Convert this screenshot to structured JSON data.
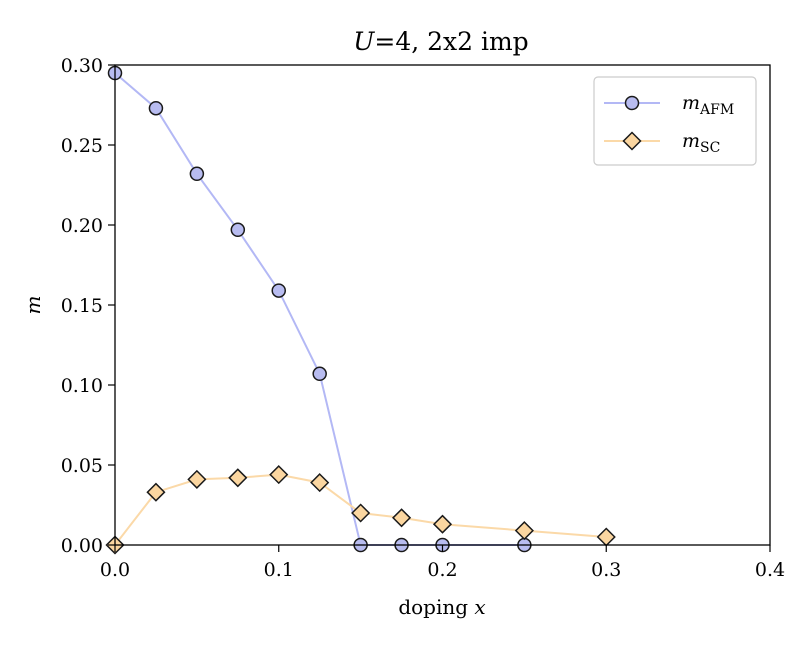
{
  "chart_data": {
    "type": "line",
    "title": {
      "var": "U",
      "rest": "=4, 2x2 imp"
    },
    "xlabel": {
      "text": "doping ",
      "var": "x"
    },
    "ylabel": "m",
    "xlim": [
      0.0,
      0.4
    ],
    "ylim": [
      0.0,
      0.3
    ],
    "x_ticks": [
      0.0,
      0.1,
      0.2,
      0.3,
      0.4
    ],
    "x_tick_labels": [
      "0.0",
      "0.1",
      "0.2",
      "0.3",
      "0.4"
    ],
    "y_ticks": [
      0.0,
      0.05,
      0.1,
      0.15,
      0.2,
      0.25,
      0.3
    ],
    "y_tick_labels": [
      "0.00",
      "0.05",
      "0.10",
      "0.15",
      "0.20",
      "0.25",
      "0.30"
    ],
    "grid": false,
    "legend_position": "top-right",
    "series": [
      {
        "name": "m",
        "name_sub": "AFM",
        "marker": "circle",
        "line_color": "#b3b8f5",
        "marker_fill": "#b8bcf0",
        "marker_edge": "#1a1a1a",
        "x": [
          0.0,
          0.025,
          0.05,
          0.075,
          0.1,
          0.125,
          0.15,
          0.175,
          0.2,
          0.25
        ],
        "y": [
          0.295,
          0.273,
          0.232,
          0.197,
          0.159,
          0.107,
          0.0,
          0.0,
          0.0,
          0.0
        ]
      },
      {
        "name": "m",
        "name_sub": "SC",
        "marker": "diamond",
        "line_color": "#fbd9a8",
        "marker_fill": "#fbd6a0",
        "marker_edge": "#1a1a1a",
        "x": [
          0.0,
          0.025,
          0.05,
          0.075,
          0.1,
          0.125,
          0.15,
          0.175,
          0.2,
          0.25,
          0.3
        ],
        "y": [
          0.0,
          0.033,
          0.041,
          0.042,
          0.044,
          0.039,
          0.02,
          0.017,
          0.013,
          0.009,
          0.005
        ]
      }
    ]
  }
}
